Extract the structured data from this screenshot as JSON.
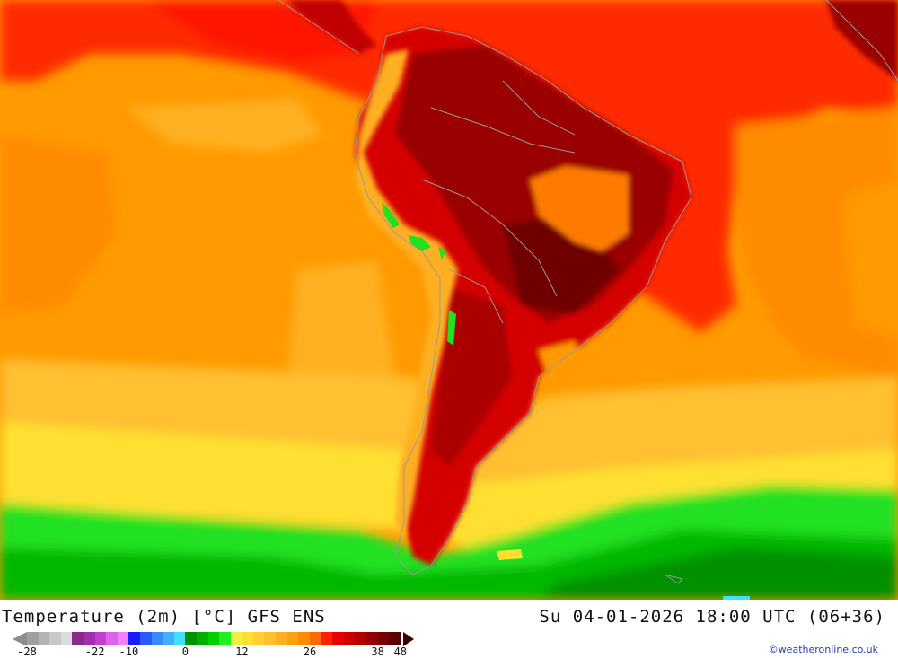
{
  "header": {
    "title": "Temperature (2m) [°C] GFS ENS",
    "datetime": "Su 04-01-2026 18:00 UTC (06+36)"
  },
  "legend": {
    "colors": [
      "#a0a0a0",
      "#b4b4b4",
      "#c8c8c8",
      "#dcdcdc",
      "#8a2a8a",
      "#a030b0",
      "#c040d0",
      "#e060f0",
      "#f080ff",
      "#1a1aff",
      "#2a5aff",
      "#3a8aff",
      "#40b0ff",
      "#40e0ff",
      "#009000",
      "#00b000",
      "#00d000",
      "#20f020",
      "#f0f040",
      "#ffe030",
      "#ffd030",
      "#ffc030",
      "#ffb020",
      "#ffa010",
      "#ff8c00",
      "#ff6a00",
      "#ff2000",
      "#e80000",
      "#cc0000",
      "#b00000",
      "#940000",
      "#780000",
      "#5a0000"
    ],
    "ticks": [
      {
        "label": "-28",
        "pos": 0
      },
      {
        "label": "-22",
        "pos": 6
      },
      {
        "label": "-10",
        "pos": 9
      },
      {
        "label": "0",
        "pos": 14
      },
      {
        "label": "12",
        "pos": 19
      },
      {
        "label": "26",
        "pos": 25
      },
      {
        "label": "38",
        "pos": 31
      },
      {
        "label": "48",
        "pos": 33
      }
    ]
  },
  "credit": "©weatheronline.co.uk"
}
